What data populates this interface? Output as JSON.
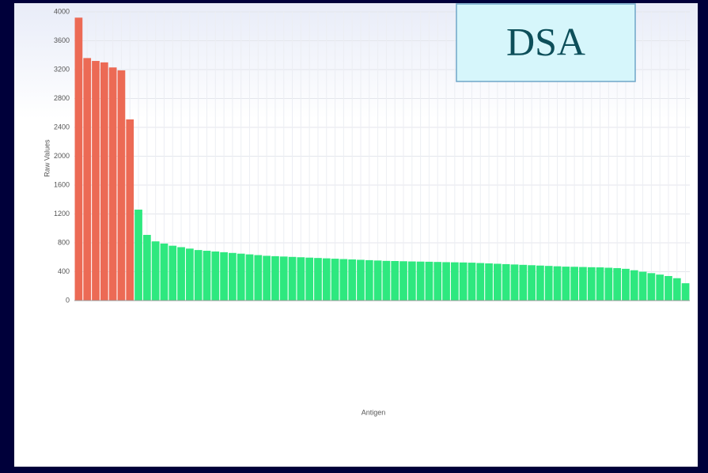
{
  "chart_data": {
    "type": "bar",
    "title": "DSA",
    "y_label": "Raw Values",
    "x_label": "Antigen",
    "categories": [
      null,
      null,
      null,
      null,
      null,
      null,
      null,
      null,
      null,
      null,
      null,
      null,
      null,
      null,
      null,
      null,
      null,
      null,
      null,
      null,
      null,
      null,
      null,
      null,
      null,
      null,
      null,
      null,
      null,
      null,
      null,
      null,
      null,
      null,
      null,
      null,
      null,
      null,
      null,
      null,
      null,
      null,
      null,
      null,
      null,
      null,
      null,
      null,
      null,
      null,
      null,
      null,
      null,
      null,
      null,
      null,
      null,
      null,
      null,
      null,
      null,
      null,
      null,
      null,
      null,
      null,
      null,
      null,
      null,
      null,
      null,
      null
    ],
    "values": [
      3920,
      3360,
      3320,
      3300,
      3230,
      3190,
      2510,
      1260,
      910,
      820,
      790,
      760,
      740,
      720,
      700,
      690,
      680,
      670,
      660,
      650,
      640,
      630,
      620,
      615,
      610,
      605,
      600,
      595,
      590,
      585,
      580,
      575,
      570,
      565,
      560,
      555,
      550,
      548,
      545,
      542,
      540,
      538,
      535,
      532,
      530,
      528,
      525,
      520,
      515,
      510,
      505,
      500,
      495,
      490,
      485,
      480,
      475,
      470,
      468,
      465,
      462,
      460,
      455,
      450,
      440,
      420,
      400,
      380,
      360,
      340,
      310,
      240
    ],
    "colors": [
      "#ec6a55",
      "#ec6a55",
      "#ec6a55",
      "#ec6a55",
      "#ec6a55",
      "#ec6a55",
      "#ec6a55",
      "#2ee87f",
      "#2ee87f",
      "#2ee87f",
      "#2ee87f",
      "#2ee87f",
      "#2ee87f",
      "#2ee87f",
      "#2ee87f",
      "#2ee87f",
      "#2ee87f",
      "#2ee87f",
      "#2ee87f",
      "#2ee87f",
      "#2ee87f",
      "#2ee87f",
      "#2ee87f",
      "#2ee87f",
      "#2ee87f",
      "#2ee87f",
      "#2ee87f",
      "#2ee87f",
      "#2ee87f",
      "#2ee87f",
      "#2ee87f",
      "#2ee87f",
      "#2ee87f",
      "#2ee87f",
      "#2ee87f",
      "#2ee87f",
      "#2ee87f",
      "#2ee87f",
      "#2ee87f",
      "#2ee87f",
      "#2ee87f",
      "#2ee87f",
      "#2ee87f",
      "#2ee87f",
      "#2ee87f",
      "#2ee87f",
      "#2ee87f",
      "#2ee87f",
      "#2ee87f",
      "#2ee87f",
      "#2ee87f",
      "#2ee87f",
      "#2ee87f",
      "#2ee87f",
      "#2ee87f",
      "#2ee87f",
      "#2ee87f",
      "#2ee87f",
      "#2ee87f",
      "#2ee87f",
      "#2ee87f",
      "#2ee87f",
      "#2ee87f",
      "#2ee87f",
      "#2ee87f",
      "#2ee87f",
      "#2ee87f",
      "#2ee87f",
      "#2ee87f",
      "#2ee87f",
      "#2ee87f",
      "#2ee87f"
    ],
    "ylim": [
      0,
      4000
    ],
    "yticks": [
      0,
      400,
      800,
      1200,
      1600,
      2000,
      2400,
      2800,
      3200,
      3600,
      4000
    ],
    "grid": true
  }
}
